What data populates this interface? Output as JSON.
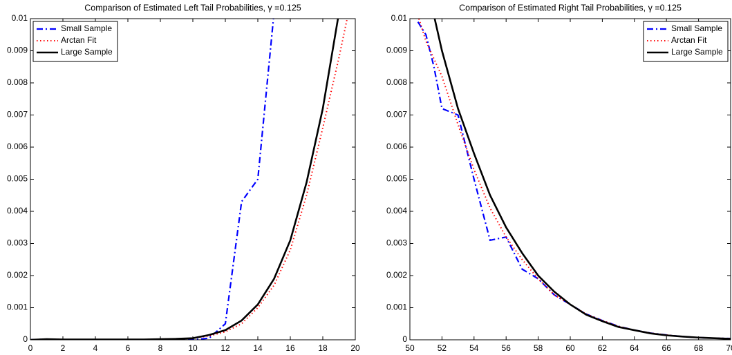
{
  "chart_data": [
    {
      "type": "line",
      "title": "Comparison of Estimated Left Tail Probabilities, γ =0.125",
      "xlim": [
        0,
        20
      ],
      "xticks": [
        0,
        2,
        4,
        6,
        8,
        10,
        12,
        14,
        16,
        18,
        20
      ],
      "ylim": [
        0,
        0.01
      ],
      "yticks": [
        0,
        0.001,
        0.002,
        0.003,
        0.004,
        0.005,
        0.006,
        0.007,
        0.008,
        0.009,
        0.01
      ],
      "legend": "upper left",
      "series": [
        {
          "name": "Small Sample",
          "color": "#0000ff",
          "style": "dashdot",
          "x": [
            0,
            1,
            2,
            3,
            4,
            5,
            6,
            7,
            8,
            9,
            10,
            11,
            12,
            13,
            14,
            15
          ],
          "values": [
            0,
            2e-05,
            0,
            0,
            0,
            0,
            0,
            0,
            0,
            0,
            0,
            5e-05,
            0.0005,
            0.0043,
            0.005,
            0.0102
          ]
        },
        {
          "name": "Arctan Fit",
          "color": "#ff0000",
          "style": "dotted",
          "x": [
            0,
            1,
            2,
            3,
            4,
            5,
            6,
            7,
            8,
            9,
            10,
            11,
            12,
            13,
            14,
            15,
            16,
            17,
            18,
            19,
            20
          ],
          "values": [
            0,
            2e-05,
            1e-05,
            1e-05,
            1e-05,
            1e-05,
            1e-05,
            1e-05,
            2e-05,
            3e-05,
            5e-05,
            0.00012,
            0.00025,
            0.0005,
            0.001,
            0.0017,
            0.0028,
            0.0045,
            0.0066,
            0.0088,
            0.0112
          ]
        },
        {
          "name": "Large Sample",
          "color": "#000000",
          "style": "solid",
          "x": [
            0,
            1,
            2,
            3,
            4,
            5,
            6,
            7,
            8,
            9,
            10,
            11,
            12,
            13,
            14,
            15,
            16,
            17,
            18,
            19,
            20
          ],
          "values": [
            0,
            2e-05,
            1e-05,
            1e-05,
            1e-05,
            1e-05,
            1e-05,
            1e-05,
            2e-05,
            3e-05,
            5e-05,
            0.00015,
            0.0003,
            0.0006,
            0.0011,
            0.0019,
            0.0031,
            0.0049,
            0.0072,
            0.0102,
            0.014
          ]
        }
      ]
    },
    {
      "type": "line",
      "title": "Comparison of Estimated Right Tail Probabilities, γ =0.125",
      "xlim": [
        50,
        70
      ],
      "xticks": [
        50,
        52,
        54,
        56,
        58,
        60,
        62,
        64,
        66,
        68,
        70
      ],
      "ylim": [
        0,
        0.01
      ],
      "yticks": [
        0,
        0.001,
        0.002,
        0.003,
        0.004,
        0.005,
        0.006,
        0.007,
        0.008,
        0.009,
        0.01
      ],
      "legend": "upper right",
      "series": [
        {
          "name": "Small Sample",
          "color": "#0000ff",
          "style": "dashdot",
          "x": [
            50.5,
            51,
            51.5,
            52,
            53,
            54,
            55,
            56,
            57,
            58,
            59,
            60,
            61,
            62,
            63,
            64,
            65,
            66,
            67,
            68,
            69,
            70
          ],
          "values": [
            0.0099,
            0.0095,
            0.0085,
            0.0072,
            0.007,
            0.005,
            0.0031,
            0.0032,
            0.0022,
            0.0019,
            0.0014,
            0.0011,
            0.0008,
            0.0006,
            0.00042,
            0.0003,
            0.00021,
            0.00015,
            0.0001,
            7e-05,
            5e-05,
            4e-05
          ]
        },
        {
          "name": "Arctan Fit",
          "color": "#ff0000",
          "style": "dotted",
          "x": [
            50.5,
            51,
            52,
            53,
            54,
            55,
            56,
            57,
            58,
            59,
            60,
            61,
            62,
            63,
            64,
            65,
            66,
            67,
            68,
            69,
            70
          ],
          "values": [
            0.0101,
            0.0093,
            0.0082,
            0.0067,
            0.0053,
            0.0041,
            0.0032,
            0.0025,
            0.0019,
            0.0014,
            0.0011,
            0.0008,
            0.0006,
            0.00042,
            0.0003,
            0.00021,
            0.00015,
            0.0001,
            7e-05,
            5e-05,
            4e-05
          ]
        },
        {
          "name": "Large Sample",
          "color": "#000000",
          "style": "solid",
          "x": [
            51.5,
            52,
            53,
            54,
            55,
            56,
            57,
            58,
            59,
            60,
            61,
            62,
            63,
            64,
            65,
            66,
            67,
            68,
            69,
            70
          ],
          "values": [
            0.0101,
            0.009,
            0.0072,
            0.0058,
            0.0045,
            0.0035,
            0.0027,
            0.002,
            0.0015,
            0.0011,
            0.00078,
            0.00058,
            0.0004,
            0.0003,
            0.0002,
            0.00014,
            0.0001,
            7e-05,
            5e-05,
            3e-05
          ]
        }
      ]
    }
  ]
}
